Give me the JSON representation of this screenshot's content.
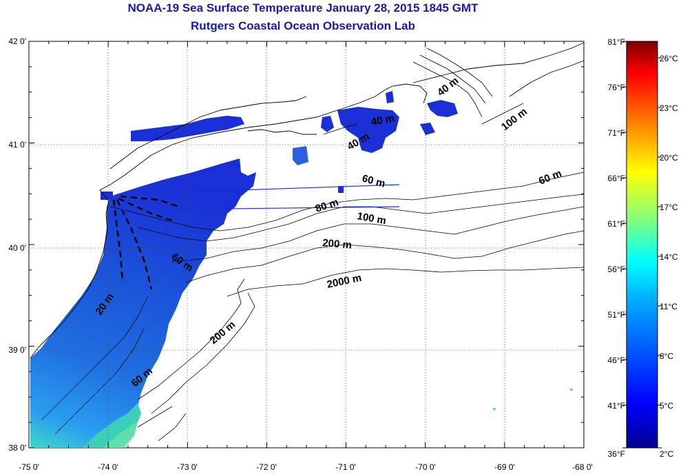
{
  "title": "NOAA-19 Sea Surface Temperature January 28, 2015 1845 GMT",
  "subtitle": "Rutgers Coastal Ocean Observation Lab",
  "lat_ticks": [
    "42 0'",
    "41 0'",
    "40 0'",
    "39 0'",
    "38 0'"
  ],
  "lon_ticks": [
    "-75 0'",
    "-74 0'",
    "-73 0'",
    "-72 0'",
    "-71 0'",
    "-70 0'",
    "-69 0'",
    "-68 0'"
  ],
  "colorbar": {
    "fahrenheit": [
      "81°F",
      "76°F",
      "71°F",
      "66°F",
      "61°F",
      "56°F",
      "51°F",
      "46°F",
      "41°F",
      "36°F"
    ],
    "celsius": [
      "26°C",
      "23°C",
      "20°C",
      "17°C",
      "14°C",
      "11°C",
      "8°C",
      "5°C",
      "2°C"
    ],
    "colors": [
      "#7f0000",
      "#ff0000",
      "#ff7f00",
      "#ffff00",
      "#7fff7f",
      "#00ffff",
      "#007fff",
      "#0000ff",
      "#00008f"
    ]
  },
  "contour_labels": [
    "40 m",
    "100 m",
    "40 m",
    "40 m",
    "60 m",
    "60 m",
    "80 m",
    "100 m",
    "200 m",
    "60 m",
    "2000 m",
    "20 m",
    "200 m",
    "60 m"
  ]
}
